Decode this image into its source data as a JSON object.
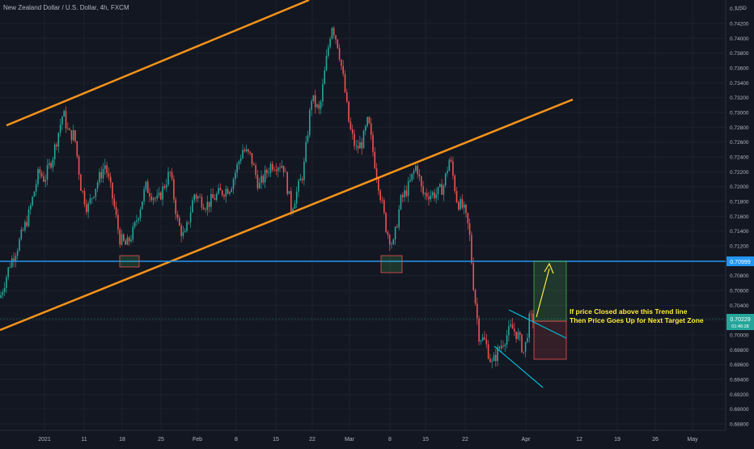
{
  "header": {
    "title": "New Zealand Dollar / U.S. Dollar, 4h, FXCM",
    "currency": "USD"
  },
  "price_axis": {
    "ticks": [
      "0.74200",
      "0.74000",
      "0.73800",
      "0.73600",
      "0.73400",
      "0.73200",
      "0.73000",
      "0.72800",
      "0.72600",
      "0.72400",
      "0.72200",
      "0.72000",
      "0.71800",
      "0.71600",
      "0.71400",
      "0.71200",
      "0.71000",
      "0.70800",
      "0.70600",
      "0.70400",
      "0.70200",
      "0.70000",
      "0.69800",
      "0.69600",
      "0.69400",
      "0.69200",
      "0.69000",
      "0.68800"
    ],
    "top_partial": "0.7..."
  },
  "time_axis": {
    "ticks": [
      "2021",
      "11",
      "18",
      "25",
      "Feb",
      "8",
      "15",
      "22",
      "Mar",
      "8",
      "15",
      "22",
      "Apr",
      "12",
      "19",
      "26",
      "May"
    ]
  },
  "badges": {
    "resistance": "0.70999",
    "current_price": "0.70229",
    "countdown": "01:46:28"
  },
  "annotation": {
    "line1": "If price Closed above this Trend line",
    "line2": "Then Price Goes Up for Next Target Zone"
  },
  "colors": {
    "background": "#131722",
    "bull": "#26a69a",
    "bear": "#ef5350",
    "channel": "#f7931a",
    "resistance": "#2196f3",
    "wedge": "#00bcd4",
    "arrow": "#ffeb3b",
    "axis_text": "#b2b5be",
    "grid": "#1e222d"
  },
  "chart_data": {
    "type": "candlestick",
    "title": "New Zealand Dollar / U.S. Dollar, 4h, FXCM",
    "ylim": [
      0.688,
      0.743
    ],
    "resistance_level": 0.70999,
    "current_price": 0.70229,
    "close_path": [
      [
        0,
        0.705
      ],
      [
        12,
        0.7095
      ],
      [
        22,
        0.712
      ],
      [
        35,
        0.716
      ],
      [
        48,
        0.722
      ],
      [
        55,
        0.721
      ],
      [
        65,
        0.724
      ],
      [
        78,
        0.73
      ],
      [
        85,
        0.727
      ],
      [
        92,
        0.727
      ],
      [
        100,
        0.72
      ],
      [
        108,
        0.717
      ],
      [
        118,
        0.72
      ],
      [
        130,
        0.723
      ],
      [
        140,
        0.718
      ],
      [
        148,
        0.713
      ],
      [
        156,
        0.712
      ],
      [
        165,
        0.714
      ],
      [
        180,
        0.72
      ],
      [
        195,
        0.718
      ],
      [
        210,
        0.722
      ],
      [
        220,
        0.715
      ],
      [
        228,
        0.713
      ],
      [
        240,
        0.719
      ],
      [
        255,
        0.7175
      ],
      [
        270,
        0.719
      ],
      [
        285,
        0.72
      ],
      [
        300,
        0.725
      ],
      [
        310,
        0.724
      ],
      [
        320,
        0.72
      ],
      [
        335,
        0.723
      ],
      [
        350,
        0.723
      ],
      [
        360,
        0.717
      ],
      [
        375,
        0.722
      ],
      [
        385,
        0.732
      ],
      [
        395,
        0.73
      ],
      [
        402,
        0.736
      ],
      [
        410,
        0.742
      ],
      [
        418,
        0.739
      ],
      [
        425,
        0.734
      ],
      [
        432,
        0.728
      ],
      [
        440,
        0.725
      ],
      [
        448,
        0.726
      ],
      [
        455,
        0.729
      ],
      [
        462,
        0.724
      ],
      [
        470,
        0.719
      ],
      [
        478,
        0.714
      ],
      [
        486,
        0.712
      ],
      [
        495,
        0.718
      ],
      [
        505,
        0.72
      ],
      [
        515,
        0.723
      ],
      [
        522,
        0.719
      ],
      [
        530,
        0.719
      ],
      [
        540,
        0.719
      ],
      [
        548,
        0.72
      ],
      [
        556,
        0.724
      ],
      [
        565,
        0.718
      ],
      [
        573,
        0.717
      ],
      [
        580,
        0.714
      ],
      [
        585,
        0.707
      ],
      [
        592,
        0.7
      ],
      [
        600,
        0.699
      ],
      [
        608,
        0.696
      ],
      [
        616,
        0.698
      ],
      [
        624,
        0.6995
      ],
      [
        632,
        0.701
      ],
      [
        640,
        0.7
      ],
      [
        648,
        0.6975
      ],
      [
        654,
        0.702
      ],
      [
        660,
        0.7023
      ]
    ],
    "annotations": [
      "If price Closed above this Trend line",
      "Then Price Goes Up for Next Target Zone"
    ]
  }
}
